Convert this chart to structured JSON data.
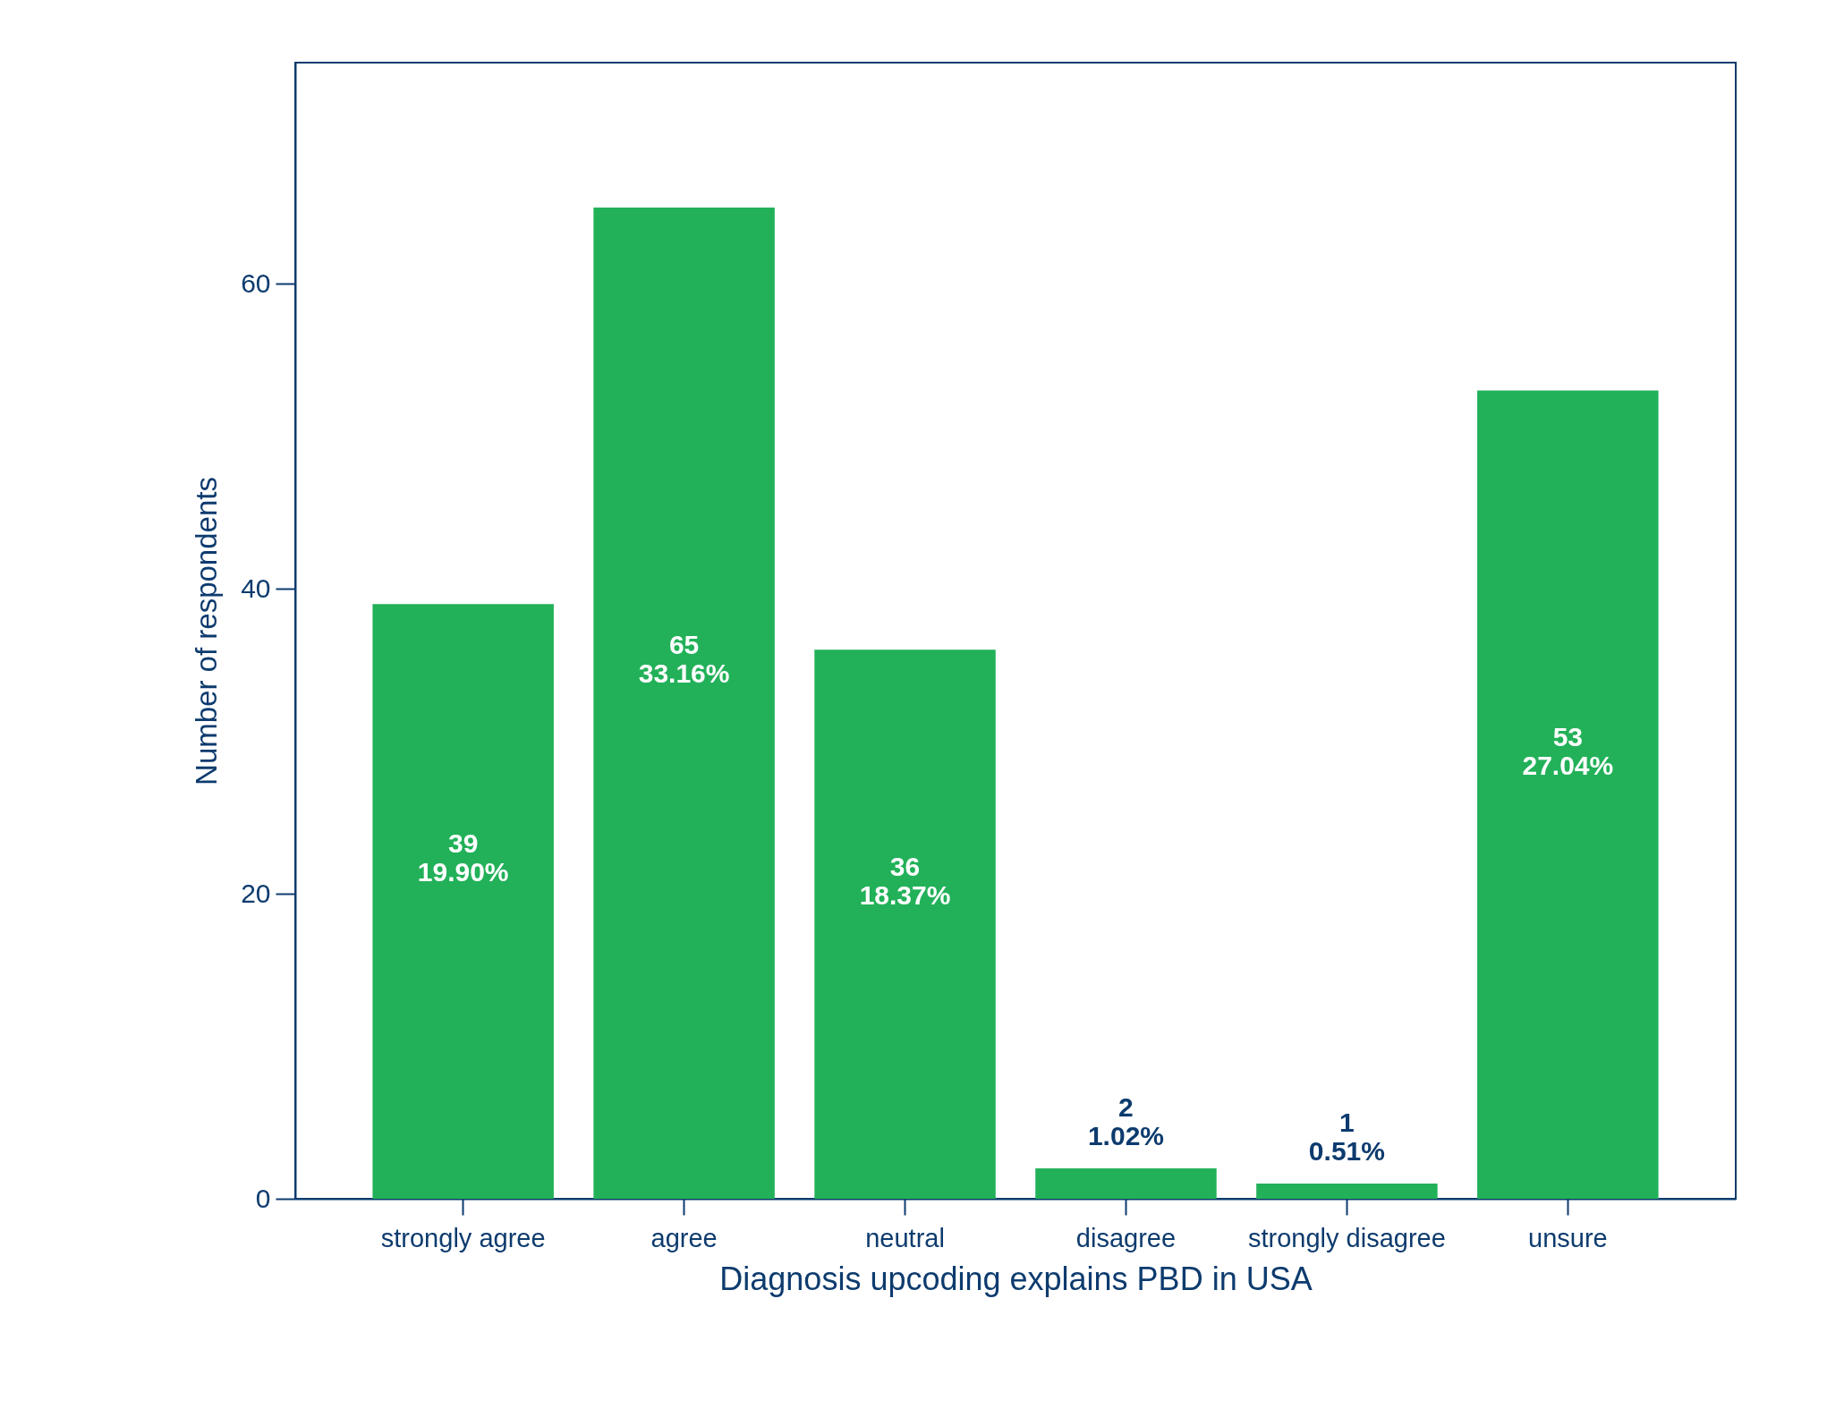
{
  "chart_data": {
    "type": "bar",
    "xlabel": "Diagnosis upcoding explains PBD in USA",
    "ylabel": "Number of respondents",
    "categories": [
      "strongly agree",
      "agree",
      "neutral",
      "disagree",
      "strongly disagree",
      "unsure"
    ],
    "values": [
      39,
      65,
      36,
      2,
      1,
      53
    ],
    "value_labels": [
      "39\n19.90%",
      "65\n33.16%",
      "36\n18.37%",
      "2\n1.02%",
      "1\n0.51%",
      "53\n27.04%"
    ],
    "color": "#22b159",
    "ylim": [
      0,
      74.5
    ],
    "yticks": [
      0,
      20,
      40,
      60
    ],
    "grid": false
  }
}
